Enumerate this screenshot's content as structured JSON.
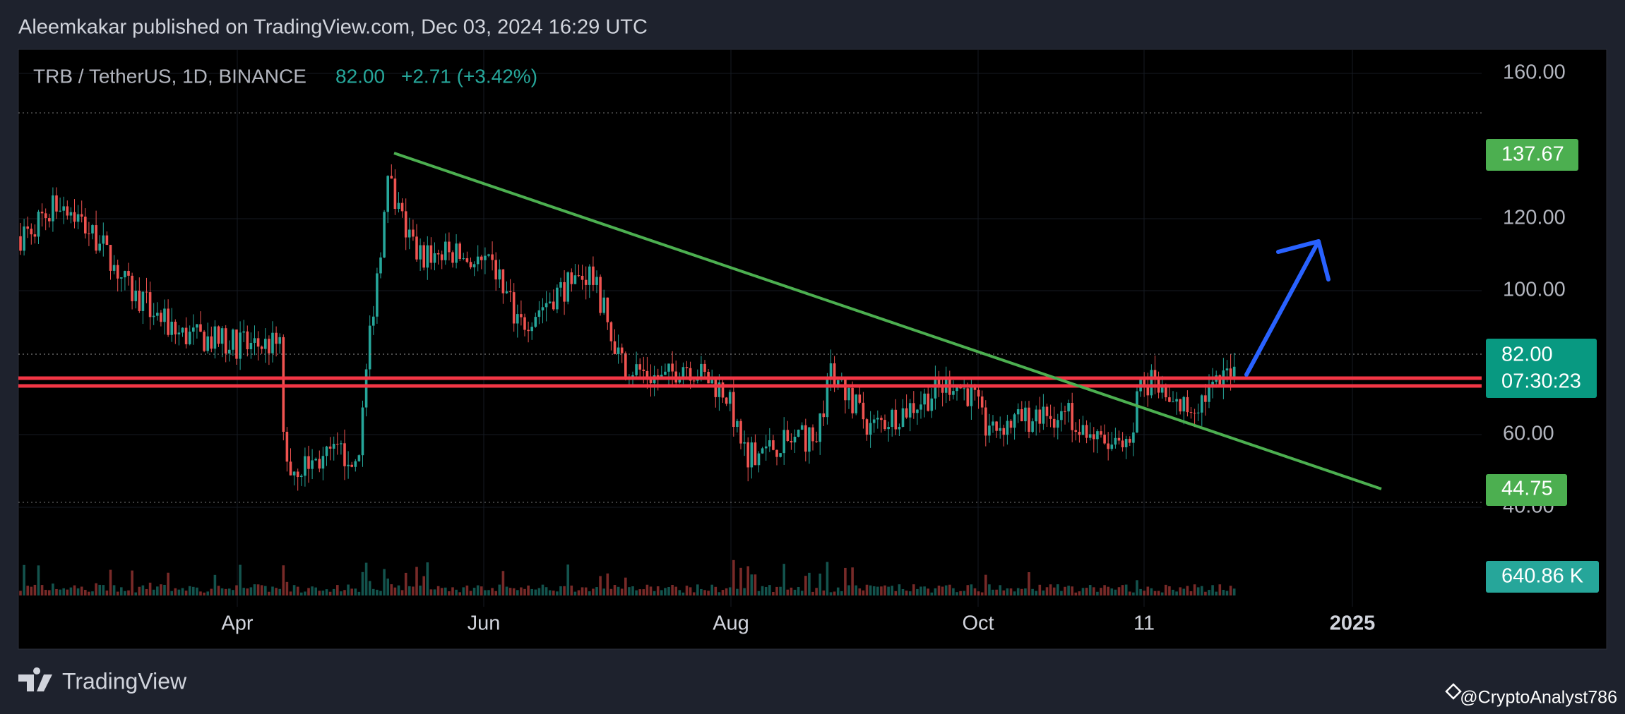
{
  "header": {
    "publisher": "Aleemkakar published on TradingView.com, Dec 03, 2024 16:29 UTC"
  },
  "legend": {
    "symbol": "TRB / TetherUS, 1D, BINANCE",
    "price": "82.00",
    "change": "+2.71 (+3.42%)"
  },
  "price_axis": [
    "160.00",
    "120.00",
    "100.00",
    "60.00",
    "40.00"
  ],
  "badges": {
    "high": "137.67",
    "last": "82.00",
    "countdown": "07:30:23",
    "low": "44.75",
    "volume": "640.86 K"
  },
  "time_axis": [
    "Apr",
    "Jun",
    "Aug",
    "Oct",
    "11",
    "2025"
  ],
  "footer": {
    "brand": "TradingView",
    "author": "@CryptoAnalyst786"
  }
}
